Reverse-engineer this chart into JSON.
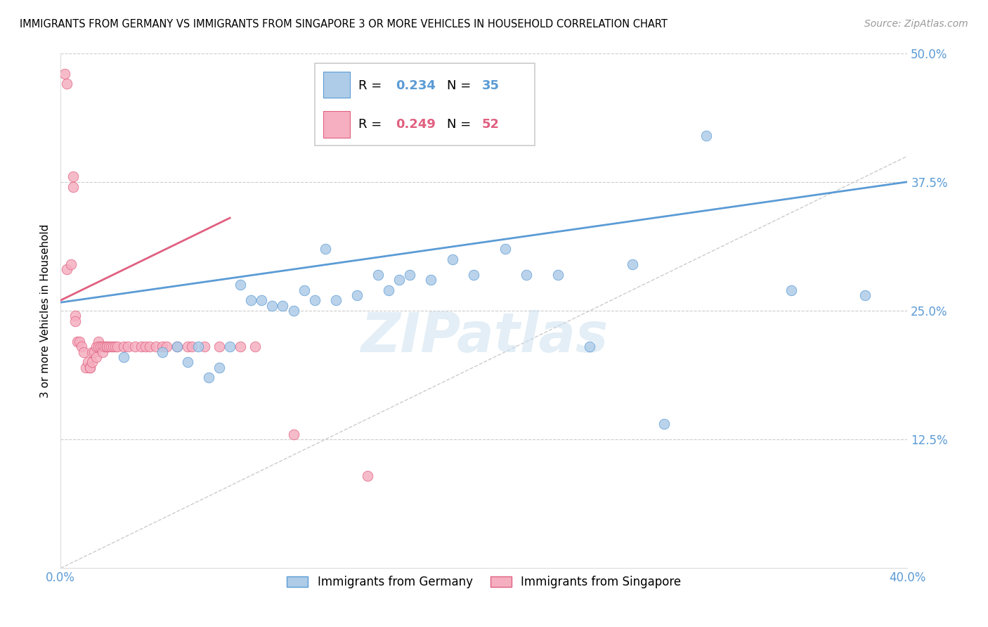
{
  "title": "IMMIGRANTS FROM GERMANY VS IMMIGRANTS FROM SINGAPORE 3 OR MORE VEHICLES IN HOUSEHOLD CORRELATION CHART",
  "source": "Source: ZipAtlas.com",
  "ylabel": "3 or more Vehicles in Household",
  "xlim": [
    0.0,
    0.4
  ],
  "ylim": [
    0.0,
    0.5
  ],
  "yticks": [
    0.0,
    0.125,
    0.25,
    0.375,
    0.5
  ],
  "ytick_labels": [
    "",
    "12.5%",
    "25.0%",
    "37.5%",
    "50.0%"
  ],
  "xtick_vals": [
    0.0,
    0.1,
    0.2,
    0.3,
    0.4
  ],
  "xtick_labels": [
    "0.0%",
    "",
    "",
    "",
    "40.0%"
  ],
  "germany_R": 0.234,
  "germany_N": 35,
  "singapore_R": 0.249,
  "singapore_N": 52,
  "germany_color": "#aecce8",
  "singapore_color": "#f5afc0",
  "germany_line_color": "#5b9bd5",
  "singapore_line_color": "#e06080",
  "diagonal_color": "#cccccc",
  "watermark": "ZIPatlas",
  "germany_x": [
    0.03,
    0.048,
    0.055,
    0.06,
    0.065,
    0.07,
    0.075,
    0.08,
    0.085,
    0.09,
    0.095,
    0.1,
    0.105,
    0.11,
    0.115,
    0.12,
    0.125,
    0.13,
    0.14,
    0.15,
    0.155,
    0.16,
    0.165,
    0.175,
    0.185,
    0.195,
    0.21,
    0.22,
    0.235,
    0.25,
    0.27,
    0.285,
    0.305,
    0.345,
    0.38
  ],
  "germany_y": [
    0.205,
    0.21,
    0.215,
    0.2,
    0.215,
    0.185,
    0.195,
    0.215,
    0.275,
    0.26,
    0.26,
    0.255,
    0.255,
    0.25,
    0.27,
    0.26,
    0.31,
    0.26,
    0.265,
    0.285,
    0.27,
    0.28,
    0.285,
    0.28,
    0.3,
    0.285,
    0.31,
    0.285,
    0.285,
    0.215,
    0.295,
    0.14,
    0.42,
    0.27,
    0.265
  ],
  "singapore_x": [
    0.002,
    0.003,
    0.003,
    0.005,
    0.006,
    0.006,
    0.007,
    0.007,
    0.008,
    0.009,
    0.01,
    0.011,
    0.012,
    0.013,
    0.014,
    0.014,
    0.015,
    0.015,
    0.016,
    0.017,
    0.017,
    0.018,
    0.018,
    0.019,
    0.02,
    0.02,
    0.021,
    0.022,
    0.022,
    0.023,
    0.024,
    0.025,
    0.026,
    0.027,
    0.03,
    0.032,
    0.035,
    0.038,
    0.04,
    0.042,
    0.045,
    0.048,
    0.05,
    0.055,
    0.06,
    0.062,
    0.068,
    0.075,
    0.085,
    0.092,
    0.11,
    0.145
  ],
  "singapore_y": [
    0.48,
    0.47,
    0.29,
    0.295,
    0.38,
    0.37,
    0.245,
    0.24,
    0.22,
    0.22,
    0.215,
    0.21,
    0.195,
    0.2,
    0.195,
    0.195,
    0.21,
    0.2,
    0.21,
    0.215,
    0.205,
    0.22,
    0.215,
    0.215,
    0.215,
    0.21,
    0.215,
    0.215,
    0.215,
    0.215,
    0.215,
    0.215,
    0.215,
    0.215,
    0.215,
    0.215,
    0.215,
    0.215,
    0.215,
    0.215,
    0.215,
    0.215,
    0.215,
    0.215,
    0.215,
    0.215,
    0.215,
    0.215,
    0.215,
    0.215,
    0.13,
    0.09
  ],
  "germany_line_y_start": 0.258,
  "germany_line_y_end": 0.375,
  "singapore_line_x_end": 0.08,
  "singapore_line_y_start": 0.26,
  "singapore_line_y_end": 0.34
}
